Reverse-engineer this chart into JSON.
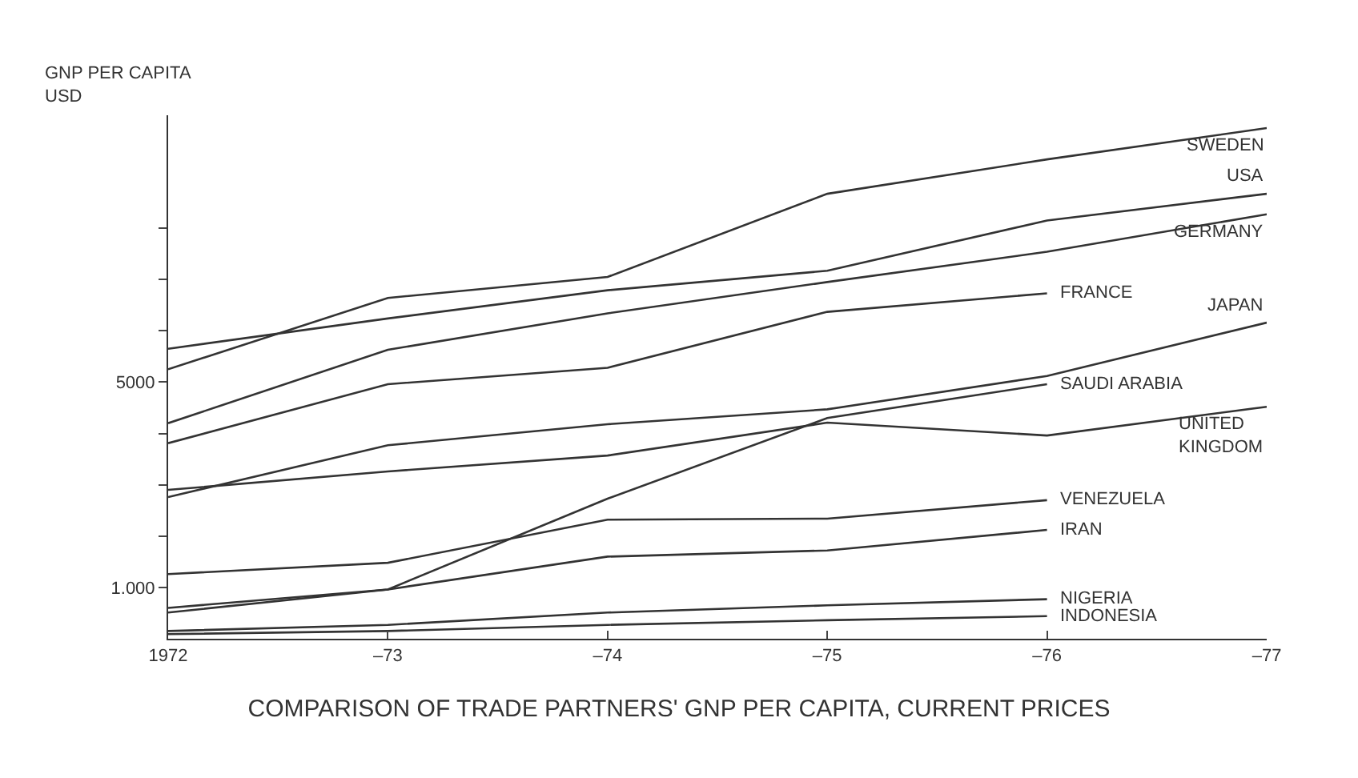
{
  "chart_data": {
    "type": "line",
    "title": "COMPARISON OF TRADE PARTNERS' GNP PER CAPITA, CURRENT PRICES",
    "ylabel": "GNP PER CAPITA\nUSD",
    "categories": [
      "1972",
      "–73",
      "–74",
      "–75",
      "–76",
      "–77"
    ],
    "ylim": [
      0,
      10200
    ],
    "yticks": [
      {
        "value": 1000,
        "label": "1.000"
      },
      {
        "value": 2000,
        "label": null
      },
      {
        "value": 3000,
        "label": null
      },
      {
        "value": 4000,
        "label": null
      },
      5000,
      {
        "value": 6000,
        "label": null
      },
      {
        "value": 7000,
        "label": null
      },
      {
        "value": 8000,
        "label": null
      }
    ],
    "legend": false,
    "marker": "none",
    "line_style": "solid",
    "series": [
      {
        "name": "SWEDEN",
        "color": "#333333",
        "values": [
          5250,
          6640,
          7050,
          8670,
          9340,
          9950
        ]
      },
      {
        "name": "USA",
        "color": "#333333",
        "values": [
          5650,
          6240,
          6790,
          7170,
          8150,
          8670
        ]
      },
      {
        "name": "GERMANY",
        "color": "#333333",
        "values": [
          4200,
          5630,
          6340,
          6950,
          7540,
          8270
        ]
      },
      {
        "name": "FRANCE",
        "color": "#333333",
        "values": [
          3810,
          4960,
          5280,
          6370,
          6730,
          null
        ]
      },
      {
        "name": "JAPAN",
        "color": "#333333",
        "values": [
          2760,
          3770,
          4180,
          4470,
          5120,
          6160
        ]
      },
      {
        "name": "SAUDI ARABIA",
        "color": "#333333",
        "values": [
          510,
          960,
          2730,
          4300,
          4960,
          null
        ]
      },
      {
        "name": "UNITED\nKINGDOM",
        "color": "#333333",
        "values": [
          2900,
          3260,
          3570,
          4210,
          3960,
          4520
        ]
      },
      {
        "name": "VENEZUELA",
        "color": "#333333",
        "values": [
          1260,
          1480,
          2320,
          2340,
          2700,
          null
        ]
      },
      {
        "name": "IRAN",
        "color": "#333333",
        "values": [
          600,
          960,
          1600,
          1720,
          2120,
          null
        ]
      },
      {
        "name": "NIGERIA",
        "color": "#333333",
        "values": [
          150,
          270,
          510,
          650,
          770,
          null
        ]
      },
      {
        "name": "INDONESIA",
        "color": "#333333",
        "values": [
          90,
          150,
          270,
          360,
          440,
          null
        ]
      }
    ]
  }
}
